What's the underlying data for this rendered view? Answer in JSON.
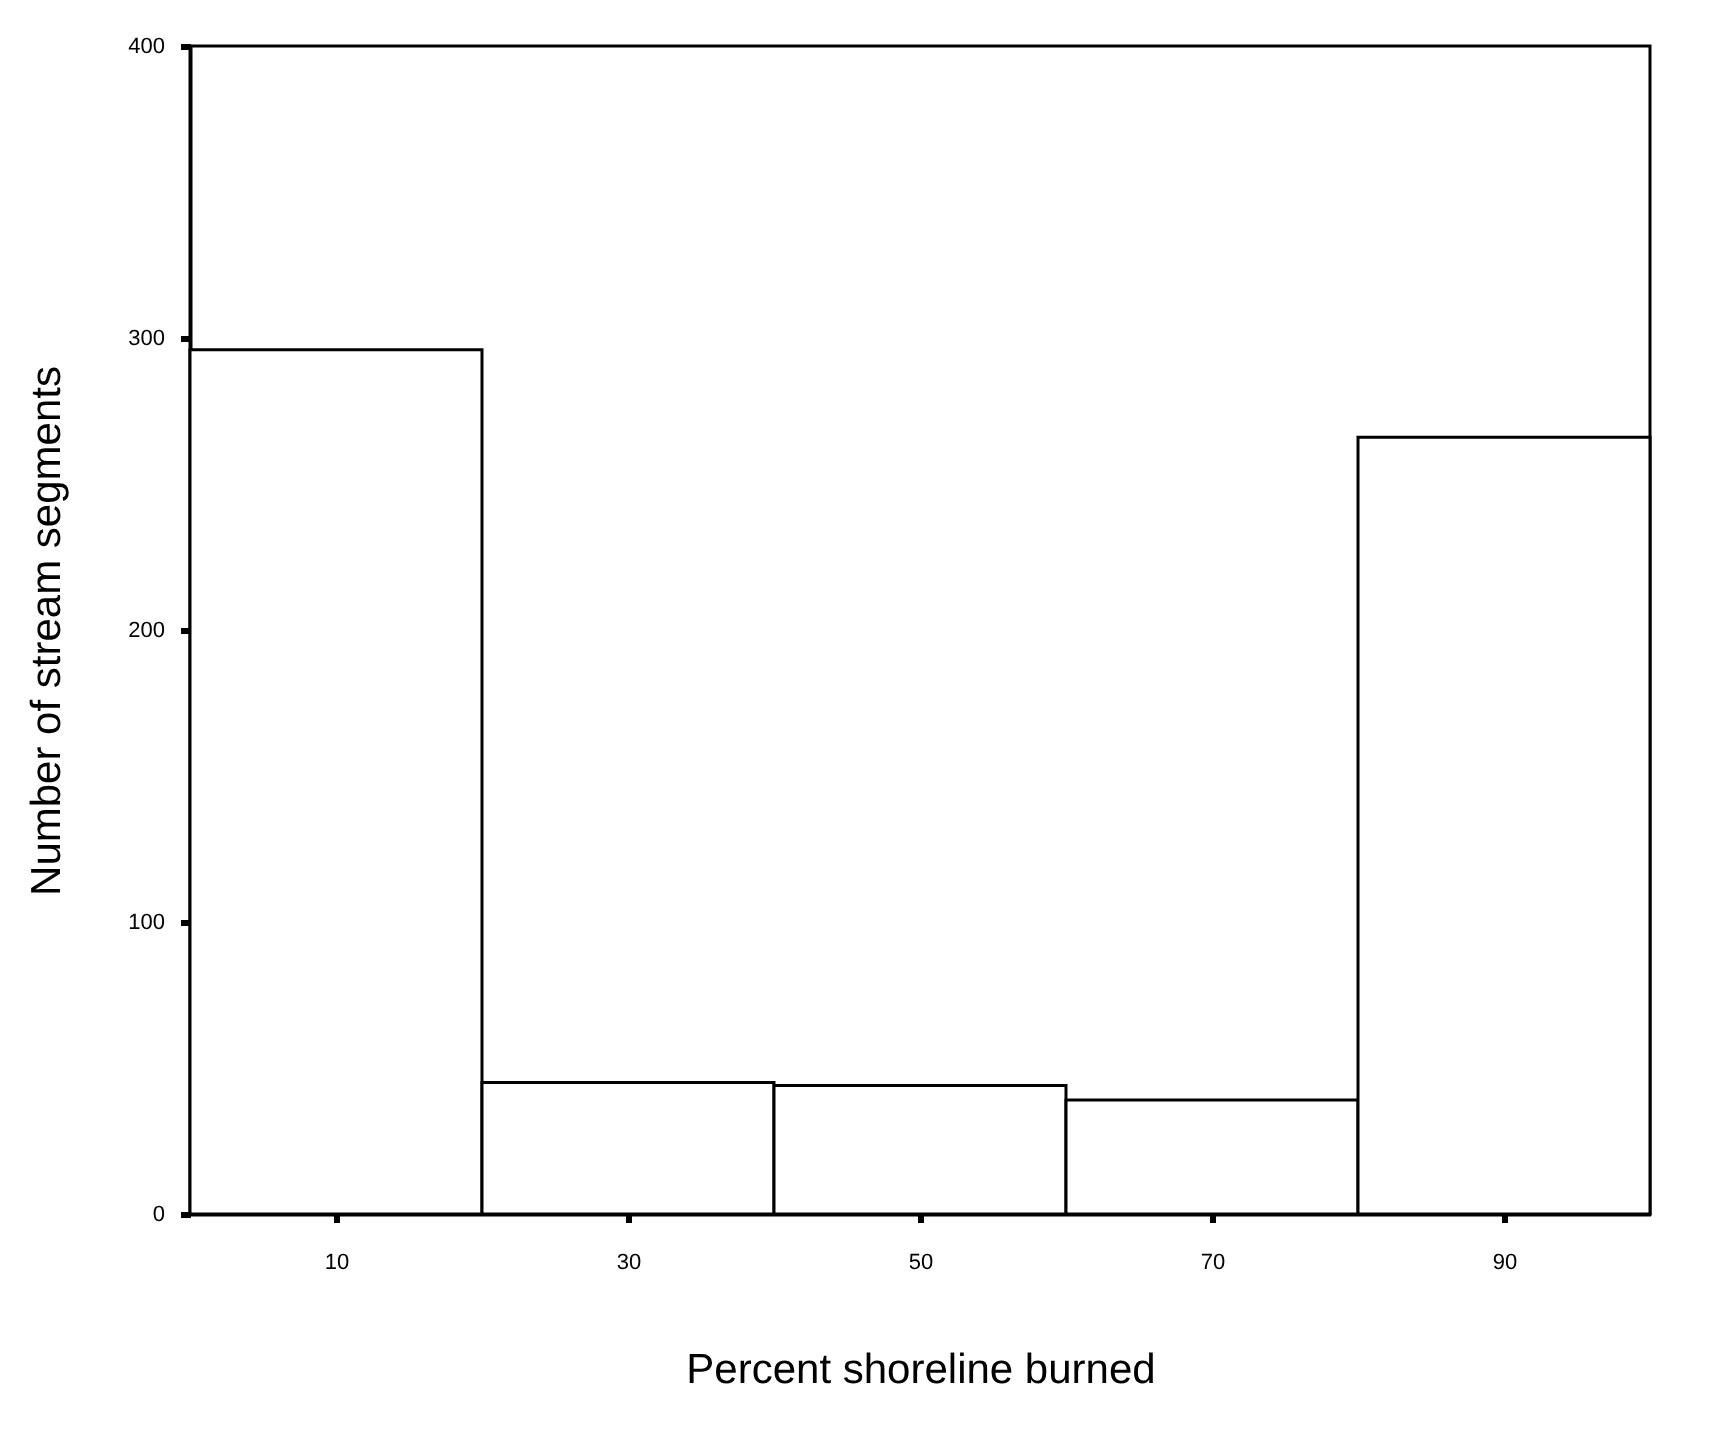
{
  "chart_data": {
    "type": "histogram",
    "xlabel": "Percent shoreline burned",
    "ylabel": "Number of stream segments",
    "bins": [
      0,
      20,
      40,
      60,
      80,
      100
    ],
    "values": [
      296,
      45,
      44,
      39,
      266
    ],
    "color": "#ffffff",
    "xlim": [
      0,
      100
    ],
    "xticks": [
      10,
      30,
      50,
      70,
      90
    ],
    "ylim": [
      0,
      400
    ],
    "yticks": [
      0,
      100,
      200,
      300,
      400
    ]
  }
}
